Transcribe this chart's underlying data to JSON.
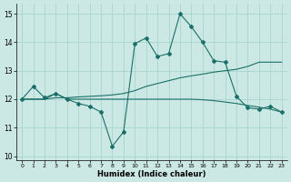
{
  "xlabel": "Humidex (Indice chaleur)",
  "xlim": [
    -0.5,
    23.5
  ],
  "ylim": [
    9.85,
    15.35
  ],
  "yticks": [
    10,
    11,
    12,
    13,
    14,
    15
  ],
  "xticks": [
    0,
    1,
    2,
    3,
    4,
    5,
    6,
    7,
    8,
    9,
    10,
    11,
    12,
    13,
    14,
    15,
    16,
    17,
    18,
    19,
    20,
    21,
    22,
    23
  ],
  "bg_color": "#cce8e4",
  "grid_color": "#a8d4cf",
  "line_color": "#1a7068",
  "series_jagged_x": [
    0,
    1,
    2,
    3,
    4,
    5,
    6,
    7,
    8,
    9,
    10,
    11,
    12,
    13,
    14,
    15,
    16,
    17,
    18,
    19,
    20,
    21,
    22,
    23
  ],
  "series_jagged_y": [
    12.0,
    12.45,
    12.05,
    12.2,
    12.0,
    11.85,
    11.75,
    11.55,
    10.35,
    10.85,
    13.95,
    14.15,
    13.5,
    13.6,
    15.0,
    14.55,
    14.0,
    13.35,
    13.3,
    12.1,
    11.7,
    11.65,
    11.75,
    11.55
  ],
  "series_rising_x": [
    0,
    1,
    2,
    3,
    4,
    5,
    6,
    7,
    8,
    9,
    10,
    11,
    12,
    13,
    14,
    15,
    16,
    17,
    18,
    19,
    20,
    21,
    22,
    23
  ],
  "series_rising_y": [
    12.0,
    12.0,
    12.0,
    12.05,
    12.05,
    12.08,
    12.1,
    12.12,
    12.15,
    12.2,
    12.3,
    12.45,
    12.55,
    12.65,
    12.75,
    12.82,
    12.88,
    12.95,
    13.0,
    13.05,
    13.15,
    13.3,
    13.3,
    13.3
  ],
  "series_flat_x": [
    0,
    1,
    2,
    3,
    4,
    5,
    6,
    7,
    8,
    9,
    10,
    11,
    12,
    13,
    14,
    15,
    16,
    17,
    18,
    19,
    20,
    21,
    22,
    23
  ],
  "series_flat_y": [
    12.0,
    12.0,
    12.0,
    12.2,
    12.0,
    12.0,
    12.0,
    12.0,
    12.0,
    12.0,
    12.0,
    12.0,
    12.0,
    12.0,
    12.0,
    12.0,
    11.98,
    11.95,
    11.9,
    11.85,
    11.78,
    11.72,
    11.65,
    11.55
  ]
}
